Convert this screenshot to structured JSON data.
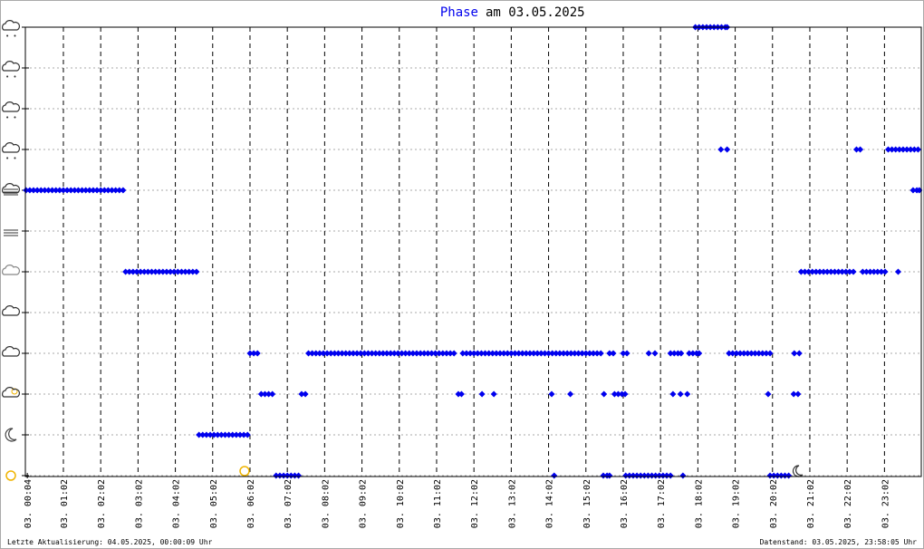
{
  "chart_data": {
    "type": "scatter",
    "title_highlight": "Phase",
    "title": "am 03.05.2025",
    "footer_left": "Letzte Aktualisierung: 04.05.2025, 00:00:09 Uhr",
    "footer_right": "Datenstand: 03.05.2025, 23:58:05 Uhr",
    "color": "#0000ee",
    "grid": true,
    "xlim": [
      0,
      1440
    ],
    "ylim": [
      0,
      11
    ],
    "yticks": [
      0,
      1,
      2,
      3,
      4,
      5,
      6,
      7,
      8,
      9,
      10,
      11
    ],
    "xticks": [
      {
        "value": 4,
        "label": "03. 00:04"
      },
      {
        "value": 62,
        "label": "03. 01:02"
      },
      {
        "value": 122,
        "label": "03. 02:02"
      },
      {
        "value": 182,
        "label": "03. 03:02"
      },
      {
        "value": 242,
        "label": "03. 04:02"
      },
      {
        "value": 302,
        "label": "03. 05:02"
      },
      {
        "value": 362,
        "label": "03. 06:02"
      },
      {
        "value": 422,
        "label": "03. 07:02"
      },
      {
        "value": 482,
        "label": "03. 08:02"
      },
      {
        "value": 542,
        "label": "03. 09:02"
      },
      {
        "value": 602,
        "label": "03. 10:02"
      },
      {
        "value": 662,
        "label": "03. 11:02"
      },
      {
        "value": 722,
        "label": "03. 12:02"
      },
      {
        "value": 782,
        "label": "03. 13:02"
      },
      {
        "value": 842,
        "label": "03. 14:02"
      },
      {
        "value": 902,
        "label": "03. 15:02"
      },
      {
        "value": 962,
        "label": "03. 16:02"
      },
      {
        "value": 1022,
        "label": "03. 17:02"
      },
      {
        "value": 1082,
        "label": "03. 18:02"
      },
      {
        "value": 1142,
        "label": "03. 19:02"
      },
      {
        "value": 1202,
        "label": "03. 20:02"
      },
      {
        "value": 1262,
        "label": "03. 21:02"
      },
      {
        "value": 1322,
        "label": "03. 22:02"
      },
      {
        "value": 1382,
        "label": "03. 23:02"
      }
    ],
    "points": [
      [
        2,
        7
      ],
      [
        8,
        7
      ],
      [
        14,
        7
      ],
      [
        20,
        7
      ],
      [
        26,
        7
      ],
      [
        32,
        7
      ],
      [
        38,
        7
      ],
      [
        44,
        7
      ],
      [
        50,
        7
      ],
      [
        56,
        7
      ],
      [
        62,
        7
      ],
      [
        68,
        7
      ],
      [
        74,
        7
      ],
      [
        80,
        7
      ],
      [
        86,
        7
      ],
      [
        92,
        7
      ],
      [
        98,
        7
      ],
      [
        104,
        7
      ],
      [
        110,
        7
      ],
      [
        116,
        7
      ],
      [
        122,
        7
      ],
      [
        128,
        7
      ],
      [
        134,
        7
      ],
      [
        140,
        7
      ],
      [
        146,
        7
      ],
      [
        152,
        7
      ],
      [
        158,
        7
      ],
      [
        162,
        5
      ],
      [
        168,
        5
      ],
      [
        174,
        5
      ],
      [
        180,
        5
      ],
      [
        186,
        5
      ],
      [
        192,
        5
      ],
      [
        198,
        5
      ],
      [
        204,
        5
      ],
      [
        210,
        5
      ],
      [
        216,
        5
      ],
      [
        222,
        5
      ],
      [
        228,
        5
      ],
      [
        234,
        5
      ],
      [
        240,
        5
      ],
      [
        246,
        5
      ],
      [
        252,
        5
      ],
      [
        258,
        5
      ],
      [
        264,
        5
      ],
      [
        270,
        5
      ],
      [
        276,
        5
      ],
      [
        280,
        1
      ],
      [
        286,
        1
      ],
      [
        292,
        1
      ],
      [
        298,
        1
      ],
      [
        304,
        1
      ],
      [
        310,
        1
      ],
      [
        316,
        1
      ],
      [
        322,
        1
      ],
      [
        328,
        1
      ],
      [
        334,
        1
      ],
      [
        340,
        1
      ],
      [
        346,
        1
      ],
      [
        352,
        1
      ],
      [
        358,
        1
      ],
      [
        362,
        3
      ],
      [
        368,
        3
      ],
      [
        374,
        3
      ],
      [
        380,
        2
      ],
      [
        386,
        2
      ],
      [
        392,
        2
      ],
      [
        398,
        2
      ],
      [
        404,
        0
      ],
      [
        410,
        0
      ],
      [
        416,
        0
      ],
      [
        422,
        0
      ],
      [
        428,
        0
      ],
      [
        434,
        0
      ],
      [
        440,
        0
      ],
      [
        445,
        2
      ],
      [
        451,
        2
      ],
      [
        456,
        3
      ],
      [
        462,
        3
      ],
      [
        468,
        3
      ],
      [
        474,
        3
      ],
      [
        480,
        3
      ],
      [
        486,
        3
      ],
      [
        492,
        3
      ],
      [
        498,
        3
      ],
      [
        504,
        3
      ],
      [
        510,
        3
      ],
      [
        516,
        3
      ],
      [
        522,
        3
      ],
      [
        528,
        3
      ],
      [
        534,
        3
      ],
      [
        540,
        3
      ],
      [
        546,
        3
      ],
      [
        552,
        3
      ],
      [
        558,
        3
      ],
      [
        564,
        3
      ],
      [
        570,
        3
      ],
      [
        576,
        3
      ],
      [
        582,
        3
      ],
      [
        588,
        3
      ],
      [
        594,
        3
      ],
      [
        600,
        3
      ],
      [
        606,
        3
      ],
      [
        612,
        3
      ],
      [
        618,
        3
      ],
      [
        624,
        3
      ],
      [
        630,
        3
      ],
      [
        636,
        3
      ],
      [
        642,
        3
      ],
      [
        648,
        3
      ],
      [
        654,
        3
      ],
      [
        660,
        3
      ],
      [
        666,
        3
      ],
      [
        672,
        3
      ],
      [
        678,
        3
      ],
      [
        684,
        3
      ],
      [
        690,
        3
      ],
      [
        697,
        2
      ],
      [
        702,
        2
      ],
      [
        735,
        2
      ],
      [
        754,
        2
      ],
      [
        704,
        3
      ],
      [
        710,
        3
      ],
      [
        716,
        3
      ],
      [
        722,
        3
      ],
      [
        728,
        3
      ],
      [
        734,
        3
      ],
      [
        740,
        3
      ],
      [
        746,
        3
      ],
      [
        752,
        3
      ],
      [
        758,
        3
      ],
      [
        764,
        3
      ],
      [
        770,
        3
      ],
      [
        776,
        3
      ],
      [
        782,
        3
      ],
      [
        788,
        3
      ],
      [
        794,
        3
      ],
      [
        800,
        3
      ],
      [
        806,
        3
      ],
      [
        812,
        3
      ],
      [
        818,
        3
      ],
      [
        824,
        3
      ],
      [
        830,
        3
      ],
      [
        836,
        3
      ],
      [
        842,
        3
      ],
      [
        848,
        3
      ],
      [
        854,
        3
      ],
      [
        860,
        3
      ],
      [
        866,
        3
      ],
      [
        872,
        3
      ],
      [
        878,
        3
      ],
      [
        884,
        3
      ],
      [
        890,
        3
      ],
      [
        896,
        3
      ],
      [
        902,
        3
      ],
      [
        908,
        3
      ],
      [
        914,
        3
      ],
      [
        920,
        3
      ],
      [
        926,
        3
      ],
      [
        847,
        2
      ],
      [
        877,
        2
      ],
      [
        931,
        2
      ],
      [
        851,
        0
      ],
      [
        930,
        0
      ],
      [
        936,
        0
      ],
      [
        940,
        0
      ],
      [
        940,
        3
      ],
      [
        946,
        3
      ],
      [
        962,
        3
      ],
      [
        968,
        3
      ],
      [
        948,
        2
      ],
      [
        954,
        2
      ],
      [
        960,
        2
      ],
      [
        965,
        2
      ],
      [
        966,
        0
      ],
      [
        972,
        0
      ],
      [
        978,
        0
      ],
      [
        984,
        0
      ],
      [
        990,
        0
      ],
      [
        996,
        0
      ],
      [
        1002,
        0
      ],
      [
        1008,
        0
      ],
      [
        1014,
        0
      ],
      [
        1020,
        0
      ],
      [
        1026,
        0
      ],
      [
        1032,
        0
      ],
      [
        1038,
        0
      ],
      [
        1058,
        0
      ],
      [
        1003,
        3
      ],
      [
        1013,
        3
      ],
      [
        1038,
        3
      ],
      [
        1044,
        3
      ],
      [
        1050,
        3
      ],
      [
        1055,
        3
      ],
      [
        1068,
        3
      ],
      [
        1074,
        3
      ],
      [
        1080,
        3
      ],
      [
        1084,
        3
      ],
      [
        1042,
        2
      ],
      [
        1054,
        2
      ],
      [
        1065,
        2
      ],
      [
        1078,
        11
      ],
      [
        1084,
        11
      ],
      [
        1090,
        11
      ],
      [
        1096,
        11
      ],
      [
        1102,
        11
      ],
      [
        1108,
        11
      ],
      [
        1114,
        11
      ],
      [
        1120,
        11
      ],
      [
        1126,
        11
      ],
      [
        1129,
        11
      ],
      [
        1119,
        8
      ],
      [
        1129,
        8
      ],
      [
        1132,
        3
      ],
      [
        1138,
        3
      ],
      [
        1144,
        3
      ],
      [
        1150,
        3
      ],
      [
        1156,
        3
      ],
      [
        1162,
        3
      ],
      [
        1168,
        3
      ],
      [
        1174,
        3
      ],
      [
        1180,
        3
      ],
      [
        1186,
        3
      ],
      [
        1192,
        3
      ],
      [
        1198,
        3
      ],
      [
        1237,
        3
      ],
      [
        1245,
        3
      ],
      [
        1195,
        2
      ],
      [
        1236,
        2
      ],
      [
        1243,
        2
      ],
      [
        1198,
        0
      ],
      [
        1204,
        0
      ],
      [
        1210,
        0
      ],
      [
        1216,
        0
      ],
      [
        1222,
        0
      ],
      [
        1228,
        0
      ],
      [
        1248,
        5
      ],
      [
        1254,
        5
      ],
      [
        1260,
        5
      ],
      [
        1266,
        5
      ],
      [
        1272,
        5
      ],
      [
        1278,
        5
      ],
      [
        1284,
        5
      ],
      [
        1290,
        5
      ],
      [
        1296,
        5
      ],
      [
        1302,
        5
      ],
      [
        1308,
        5
      ],
      [
        1314,
        5
      ],
      [
        1320,
        5
      ],
      [
        1326,
        5
      ],
      [
        1332,
        5
      ],
      [
        1347,
        5
      ],
      [
        1353,
        5
      ],
      [
        1359,
        5
      ],
      [
        1365,
        5
      ],
      [
        1371,
        5
      ],
      [
        1377,
        5
      ],
      [
        1383,
        5
      ],
      [
        1404,
        5
      ],
      [
        1337,
        8
      ],
      [
        1343,
        8
      ],
      [
        1388,
        8
      ],
      [
        1394,
        8
      ],
      [
        1400,
        8
      ],
      [
        1406,
        8
      ],
      [
        1412,
        8
      ],
      [
        1418,
        8
      ],
      [
        1424,
        8
      ],
      [
        1430,
        8
      ],
      [
        1436,
        8
      ],
      [
        1428,
        7
      ],
      [
        1434,
        7
      ],
      [
        1438,
        7
      ]
    ]
  }
}
